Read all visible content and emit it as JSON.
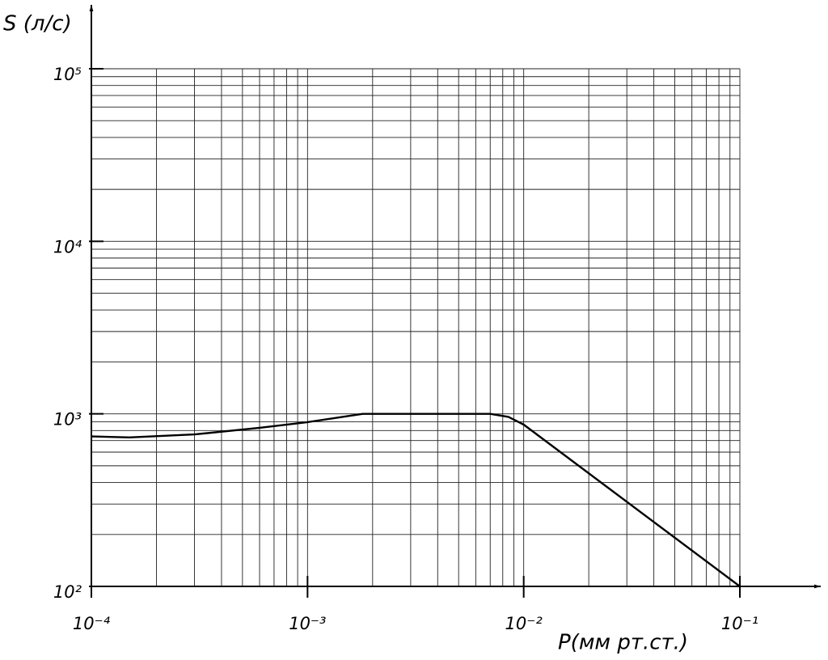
{
  "chart_data": {
    "type": "line",
    "y_label": "S (л/с)",
    "x_label": "P(мм рт.ст.)",
    "x_log": true,
    "y_log": true,
    "grid": true,
    "minor_grid": true,
    "color": "#000000",
    "xlim": [
      0.0001,
      0.1
    ],
    "ylim": [
      100,
      100000
    ],
    "xticks": [
      {
        "value": 0.0001,
        "label": "10⁻⁴"
      },
      {
        "value": 0.001,
        "label": "10⁻³"
      },
      {
        "value": 0.01,
        "label": "10⁻²"
      },
      {
        "value": 0.1,
        "label": "10⁻¹"
      }
    ],
    "yticks": [
      {
        "value": 100,
        "label": "10²"
      },
      {
        "value": 1000,
        "label": "10³"
      },
      {
        "value": 10000,
        "label": "10⁴"
      },
      {
        "value": 100000,
        "label": "10⁵"
      }
    ],
    "x": [
      0.0001,
      0.00015,
      0.0003,
      0.0006,
      0.001,
      0.0018,
      0.007,
      0.0085,
      0.01,
      0.1
    ],
    "values": [
      740,
      730,
      760,
      830,
      895,
      1000,
      1000,
      960,
      866,
      100
    ]
  }
}
